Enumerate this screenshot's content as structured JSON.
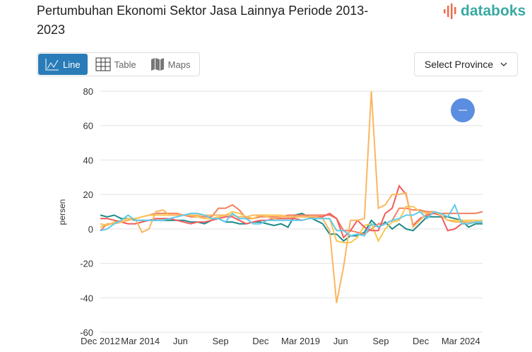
{
  "header": {
    "title": "Pertumbuhan Ekonomi Sektor Jasa Lainnya Periode 2013-2023",
    "logo_text": "databoks"
  },
  "tabs": [
    {
      "label": "Line",
      "icon": "line-chart-icon",
      "active": true
    },
    {
      "label": "Table",
      "icon": "table-icon"
    },
    {
      "label": "Maps",
      "icon": "map-icon"
    }
  ],
  "province_select": {
    "label": "Select Province"
  },
  "colors": {
    "accent": "#2a7cb8",
    "zoom_button": "#5b8de0"
  },
  "chart_data": {
    "type": "line",
    "ylabel": "persen",
    "ylim": [
      -60,
      80
    ],
    "yticks": [
      80,
      60,
      40,
      20,
      0,
      -20,
      -40,
      -60
    ],
    "xticks": [
      "Dec 2012",
      "Mar 2014",
      "Jun",
      "Sep",
      "Dec",
      "Mar 2019",
      "Jun",
      "Sep",
      "Dec",
      "Mar 2024"
    ],
    "grid": true,
    "series": [
      {
        "color": "#1f8a8a",
        "values": [
          8,
          7,
          8,
          6,
          6,
          5,
          5,
          5,
          5,
          5,
          5,
          5,
          5,
          4,
          4,
          3,
          5,
          6,
          4,
          4,
          3,
          3,
          4,
          4,
          3,
          2,
          3,
          1,
          8,
          9,
          7,
          5,
          3,
          -3,
          -3,
          -7,
          -4,
          -4,
          -2,
          5,
          1,
          4,
          0,
          3,
          0,
          -1,
          3,
          7,
          7,
          7,
          7,
          6,
          5,
          1,
          3,
          3
        ]
      },
      {
        "color": "#f47f5e",
        "values": [
          -1,
          3,
          3,
          4,
          5,
          6,
          7,
          8,
          9,
          9,
          9,
          9,
          8,
          7,
          7,
          7,
          7,
          12,
          12,
          14,
          11,
          6,
          6,
          7,
          7,
          7,
          7,
          8,
          8,
          8,
          8,
          8,
          8,
          8,
          6,
          -1,
          -1,
          -2,
          -3,
          0,
          3,
          3,
          5,
          12,
          12,
          11,
          11,
          10,
          10,
          9,
          9,
          9,
          9,
          9,
          9,
          10
        ]
      },
      {
        "color": "#f9c74f",
        "values": [
          3,
          2,
          4,
          5,
          6,
          6,
          7,
          8,
          8,
          8,
          8,
          8,
          8,
          8,
          7,
          6,
          6,
          7,
          8,
          10,
          9,
          7,
          6,
          8,
          8,
          8,
          8,
          7,
          7,
          7,
          7,
          7,
          6,
          6,
          -7,
          -8,
          -8,
          -5,
          2,
          3,
          -7,
          0,
          4,
          5,
          13,
          13,
          10,
          9,
          9,
          8,
          5,
          5,
          5,
          5,
          5,
          5
        ]
      },
      {
        "color": "#f25c5c",
        "values": [
          6,
          6,
          5,
          4,
          3,
          3,
          4,
          5,
          6,
          6,
          6,
          5,
          4,
          3,
          4,
          4,
          5,
          6,
          7,
          7,
          5,
          3,
          4,
          5,
          5,
          6,
          6,
          6,
          6,
          5,
          6,
          7,
          7,
          9,
          6,
          -5,
          -1,
          5,
          1,
          -1,
          -1,
          9,
          12,
          25,
          20,
          2,
          6,
          8,
          9,
          8,
          -1,
          0,
          3,
          3,
          4,
          4
        ]
      },
      {
        "color": "#fbb660",
        "values": [
          1,
          3,
          3,
          4,
          5,
          6,
          -2,
          0,
          10,
          11,
          8,
          8,
          8,
          8,
          8,
          8,
          8,
          8,
          8,
          8,
          7,
          7,
          8,
          8,
          7,
          6,
          7,
          7,
          7,
          7,
          7,
          7,
          6,
          -1,
          -43,
          -22,
          5,
          5,
          6,
          80,
          12,
          14,
          20,
          20,
          21,
          1,
          5,
          9,
          10,
          8,
          5,
          4,
          4,
          4,
          4,
          4
        ]
      },
      {
        "color": "#5fcbec",
        "values": [
          -1,
          0,
          3,
          5,
          8,
          5,
          5,
          5,
          5,
          5,
          6,
          7,
          8,
          9,
          9,
          8,
          6,
          6,
          4,
          9,
          6,
          6,
          3,
          3,
          5,
          5,
          5,
          5,
          5,
          5,
          6,
          6,
          6,
          6,
          -1,
          -1,
          -4,
          -3,
          -4,
          3,
          1,
          3,
          5,
          6,
          8,
          8,
          10,
          6,
          10,
          9,
          7,
          14,
          3,
          3,
          4,
          4
        ]
      }
    ]
  }
}
